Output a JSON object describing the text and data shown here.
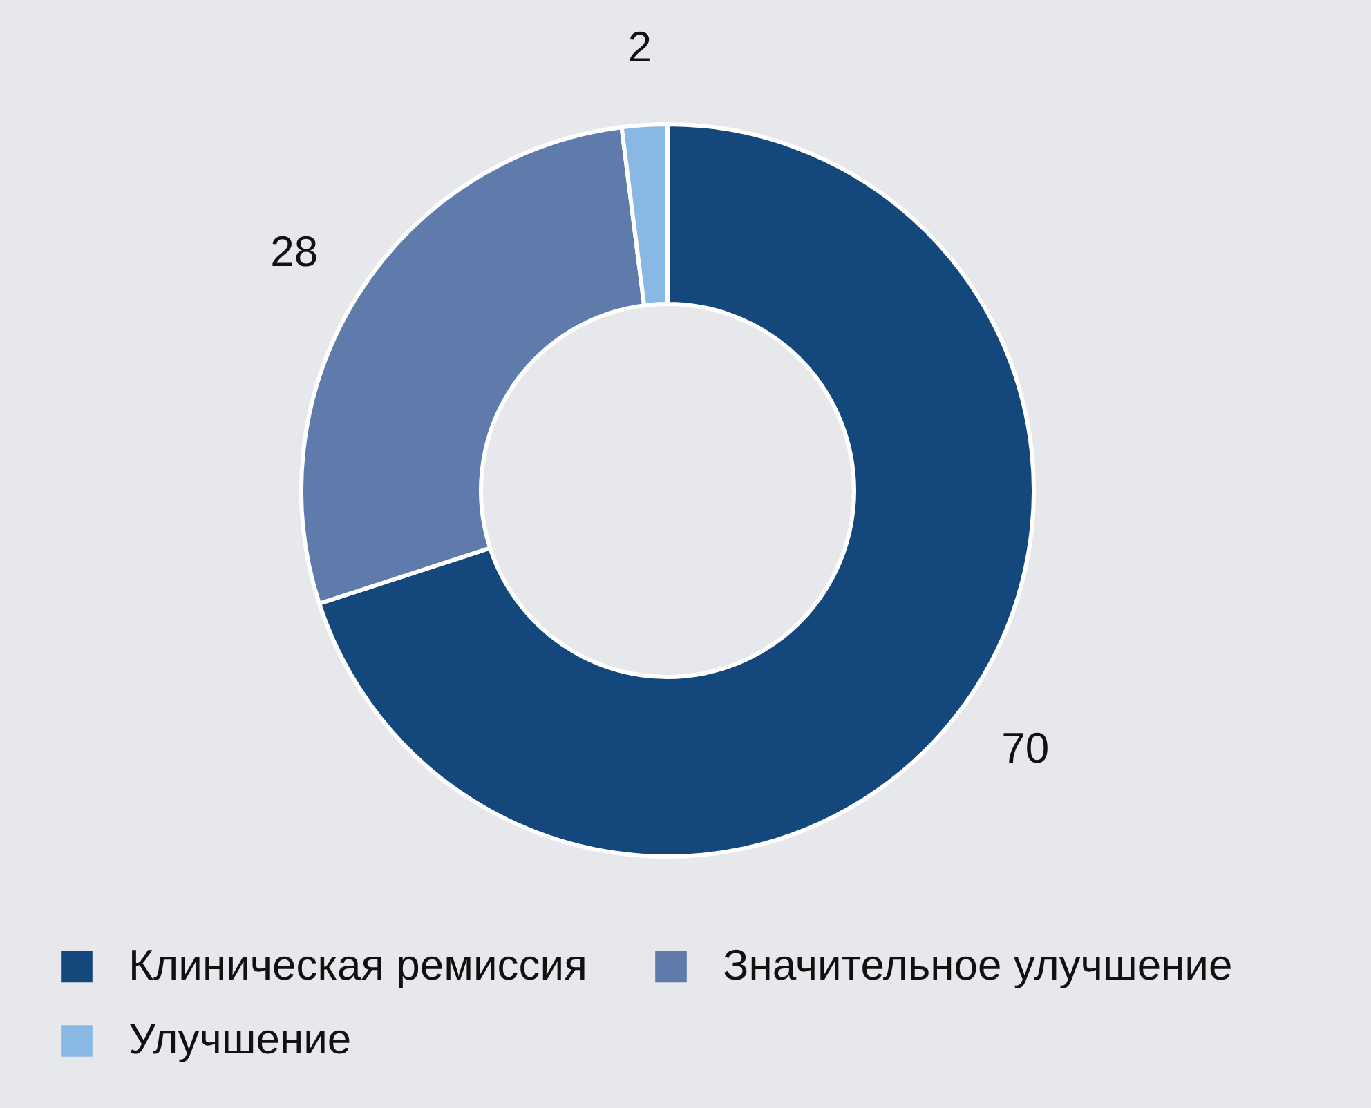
{
  "chart_data": {
    "type": "donut",
    "categories": [
      "Клиническая ремиссия",
      "Значительное улучшение",
      "Улучшение"
    ],
    "values": [
      70,
      28,
      2
    ],
    "colors": [
      "#14477c",
      "#5f7bab",
      "#88b8e3"
    ],
    "data_labels": true,
    "legend": "bottom"
  }
}
